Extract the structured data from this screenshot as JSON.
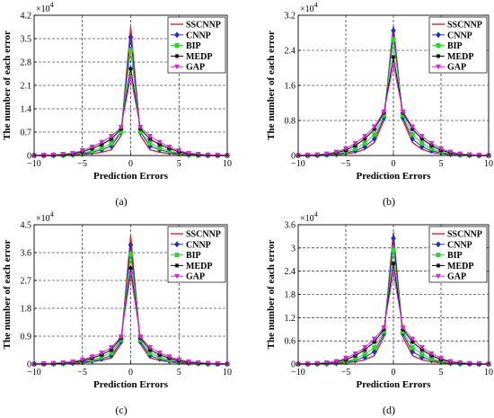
{
  "chart_data": [
    {
      "type": "line",
      "caption": "(a)",
      "multiplier": "×10",
      "multiplier_exp": "4",
      "xlabel": "Prediction Errors",
      "ylabel": "The number of each error",
      "xlim": [
        -10,
        10
      ],
      "ylim": [
        0,
        42000
      ],
      "xticks": [
        -10,
        -5,
        0,
        5,
        10
      ],
      "xtick_labels": [
        "−10",
        "−5",
        "0",
        "5",
        "10"
      ],
      "yticks": [
        0,
        7000,
        14000,
        21000,
        28000,
        35000,
        42000
      ],
      "ytick_labels": [
        "0",
        "0.7",
        "1.4",
        "2.1",
        "2.8",
        "3.5",
        "4.2"
      ],
      "grid": true,
      "legend_position": "top-right",
      "x": [
        -10,
        -9,
        -8,
        -7,
        -6,
        -5,
        -4,
        -3,
        -2,
        -1,
        0,
        1,
        2,
        3,
        4,
        5,
        6,
        7,
        8,
        9,
        10
      ],
      "series": [
        {
          "name": "SSCNNP",
          "color": "#e8202a",
          "marker": "none",
          "values": [
            0,
            0,
            0,
            50,
            100,
            300,
            600,
            1000,
            1700,
            6000,
            38500,
            6000,
            1700,
            1000,
            600,
            300,
            100,
            50,
            0,
            0,
            0
          ]
        },
        {
          "name": "CNNP",
          "color": "#1a2fd0",
          "marker": "diamond",
          "values": [
            0,
            0,
            50,
            100,
            200,
            500,
            1000,
            1700,
            2800,
            7000,
            35500,
            7000,
            2800,
            1700,
            1000,
            500,
            200,
            100,
            50,
            0,
            0
          ]
        },
        {
          "name": "BIP",
          "color": "#22dd22",
          "marker": "square",
          "values": [
            0,
            50,
            100,
            150,
            300,
            700,
            1400,
            2300,
            3600,
            7200,
            31500,
            7200,
            3600,
            2300,
            1400,
            700,
            300,
            150,
            100,
            50,
            0
          ]
        },
        {
          "name": "MEDP",
          "color": "#000000",
          "marker": "star",
          "values": [
            0,
            50,
            100,
            250,
            500,
            1100,
            2100,
            3300,
            4900,
            8000,
            26000,
            8000,
            4900,
            3300,
            2100,
            1100,
            500,
            250,
            100,
            50,
            0
          ]
        },
        {
          "name": "GAP",
          "color": "#e020e0",
          "marker": "triangle-down",
          "values": [
            0,
            100,
            200,
            400,
            700,
            1500,
            2600,
            4000,
            5800,
            8500,
            23500,
            8500,
            5800,
            4000,
            2600,
            1500,
            700,
            400,
            200,
            100,
            0
          ]
        }
      ]
    },
    {
      "type": "line",
      "caption": "(b)",
      "multiplier": "×10",
      "multiplier_exp": "4",
      "xlabel": "Prediction Errors",
      "ylabel": "The number of each error",
      "xlim": [
        -10,
        10
      ],
      "ylim": [
        0,
        32000
      ],
      "xticks": [
        -10,
        -5,
        0,
        5,
        10
      ],
      "xtick_labels": [
        "−10",
        "−5",
        "0",
        "5",
        "10"
      ],
      "yticks": [
        0,
        8000,
        16000,
        24000,
        32000
      ],
      "ytick_labels": [
        "0",
        "0.8",
        "1.6",
        "2.4",
        "3.2"
      ],
      "grid": true,
      "legend_position": "top-right",
      "x": [
        -10,
        -9,
        -8,
        -7,
        -6,
        -5,
        -4,
        -3,
        -2,
        -1,
        0,
        1,
        2,
        3,
        4,
        5,
        6,
        7,
        8,
        9,
        10
      ],
      "series": [
        {
          "name": "SSCNNP",
          "color": "#e8202a",
          "marker": "none",
          "values": [
            0,
            0,
            0,
            100,
            200,
            400,
            700,
            1400,
            3000,
            8000,
            29500,
            8000,
            3000,
            1400,
            700,
            400,
            200,
            100,
            0,
            0,
            0
          ]
        },
        {
          "name": "CNNP",
          "color": "#1a2fd0",
          "marker": "diamond",
          "values": [
            0,
            0,
            50,
            150,
            300,
            600,
            1100,
            2000,
            3800,
            8600,
            28500,
            8600,
            3800,
            2000,
            1100,
            600,
            300,
            150,
            50,
            0,
            0
          ]
        },
        {
          "name": "BIP",
          "color": "#22dd22",
          "marker": "square",
          "values": [
            0,
            50,
            100,
            200,
            400,
            800,
            1600,
            2800,
            4800,
            9200,
            26500,
            9200,
            4800,
            2800,
            1600,
            800,
            400,
            200,
            100,
            50,
            0
          ]
        },
        {
          "name": "MEDP",
          "color": "#000000",
          "marker": "star",
          "values": [
            0,
            50,
            150,
            300,
            600,
            1200,
            2300,
            3800,
            6000,
            9800,
            22500,
            9800,
            6000,
            3800,
            2300,
            1200,
            600,
            300,
            150,
            50,
            0
          ]
        },
        {
          "name": "GAP",
          "color": "#e020e0",
          "marker": "triangle-down",
          "values": [
            0,
            100,
            200,
            400,
            800,
            1600,
            2800,
            4400,
            6600,
            10000,
            20500,
            10000,
            6600,
            4400,
            2800,
            1600,
            800,
            400,
            200,
            100,
            0
          ]
        }
      ]
    },
    {
      "type": "line",
      "caption": "(c)",
      "multiplier": "×10",
      "multiplier_exp": "4",
      "xlabel": "Prediction Errors",
      "ylabel": "The number of each error",
      "xlim": [
        -10,
        10
      ],
      "ylim": [
        0,
        45000
      ],
      "xticks": [
        -10,
        -5,
        0,
        5,
        10
      ],
      "xtick_labels": [
        "−10",
        "−5",
        "0",
        "5",
        "10"
      ],
      "yticks": [
        0,
        9000,
        18000,
        27000,
        36000,
        45000
      ],
      "ytick_labels": [
        "0",
        "0.9",
        "1.8",
        "2.7",
        "3.6",
        "4.5"
      ],
      "grid": true,
      "legend_position": "top-right",
      "x": [
        -10,
        -9,
        -8,
        -7,
        -6,
        -5,
        -4,
        -3,
        -2,
        -1,
        0,
        1,
        2,
        3,
        4,
        5,
        6,
        7,
        8,
        9,
        10
      ],
      "series": [
        {
          "name": "SSCNNP",
          "color": "#e8202a",
          "marker": "none",
          "values": [
            0,
            0,
            50,
            100,
            200,
            400,
            700,
            1200,
            2000,
            6500,
            41500,
            6500,
            2000,
            1200,
            700,
            400,
            200,
            100,
            50,
            0,
            0
          ]
        },
        {
          "name": "CNNP",
          "color": "#1a2fd0",
          "marker": "diamond",
          "values": [
            0,
            50,
            100,
            200,
            300,
            600,
            1000,
            1700,
            2700,
            7200,
            38500,
            7200,
            2700,
            1700,
            1000,
            600,
            300,
            200,
            100,
            50,
            0
          ]
        },
        {
          "name": "BIP",
          "color": "#22dd22",
          "marker": "square",
          "values": [
            0,
            50,
            150,
            250,
            400,
            800,
            1400,
            2300,
            3600,
            7800,
            35500,
            7800,
            3600,
            2300,
            1400,
            800,
            400,
            250,
            150,
            50,
            0
          ]
        },
        {
          "name": "MEDP",
          "color": "#000000",
          "marker": "star",
          "values": [
            0,
            100,
            200,
            350,
            600,
            1100,
            1900,
            3000,
            4600,
            8400,
            31000,
            8400,
            4600,
            3000,
            1900,
            1100,
            600,
            350,
            200,
            100,
            0
          ]
        },
        {
          "name": "GAP",
          "color": "#e020e0",
          "marker": "triangle-down",
          "values": [
            0,
            150,
            300,
            500,
            800,
            1400,
            2400,
            3600,
            5400,
            8800,
            29000,
            8800,
            5400,
            3600,
            2400,
            1400,
            800,
            500,
            300,
            150,
            0
          ]
        }
      ]
    },
    {
      "type": "line",
      "caption": "(d)",
      "multiplier": "×10",
      "multiplier_exp": "4",
      "xlabel": "Prediction Errors",
      "ylabel": "The number of each error",
      "xlim": [
        -10,
        10
      ],
      "ylim": [
        0,
        36000
      ],
      "xticks": [
        -10,
        -5,
        0,
        5,
        10
      ],
      "xtick_labels": [
        "−10",
        "−5",
        "0",
        "5",
        "10"
      ],
      "yticks": [
        0,
        6000,
        12000,
        18000,
        24000,
        30000,
        36000
      ],
      "ytick_labels": [
        "0",
        "0.6",
        "1.2",
        "1.8",
        "2.4",
        "3",
        "3.6"
      ],
      "grid": true,
      "legend_position": "top-right",
      "x": [
        -10,
        -9,
        -8,
        -7,
        -6,
        -5,
        -4,
        -3,
        -2,
        -1,
        0,
        1,
        2,
        3,
        4,
        5,
        6,
        7,
        8,
        9,
        10
      ],
      "series": [
        {
          "name": "SSCNNP",
          "color": "#e8202a",
          "marker": "none",
          "values": [
            0,
            0,
            0,
            50,
            100,
            300,
            600,
            1100,
            2200,
            7000,
            34000,
            7000,
            2200,
            1100,
            600,
            300,
            100,
            50,
            0,
            0,
            0
          ]
        },
        {
          "name": "CNNP",
          "color": "#1a2fd0",
          "marker": "diamond",
          "values": [
            0,
            0,
            50,
            100,
            200,
            500,
            1000,
            1800,
            3200,
            7800,
            32500,
            7800,
            3200,
            1800,
            1000,
            500,
            200,
            100,
            50,
            0,
            0
          ]
        },
        {
          "name": "BIP",
          "color": "#22dd22",
          "marker": "square",
          "values": [
            0,
            50,
            100,
            200,
            350,
            700,
            1400,
            2600,
            4300,
            8400,
            29500,
            8400,
            4300,
            2600,
            1400,
            700,
            350,
            200,
            100,
            50,
            0
          ]
        },
        {
          "name": "MEDP",
          "color": "#000000",
          "marker": "star",
          "values": [
            0,
            50,
            150,
            300,
            600,
            1100,
            2200,
            3700,
            5700,
            9000,
            26000,
            9000,
            5700,
            3700,
            2200,
            1100,
            600,
            300,
            150,
            50,
            0
          ]
        },
        {
          "name": "GAP",
          "color": "#e020e0",
          "marker": "triangle-down",
          "values": [
            0,
            100,
            200,
            400,
            700,
            1500,
            2700,
            4300,
            6500,
            9400,
            23500,
            9400,
            6500,
            4300,
            2700,
            1500,
            700,
            400,
            200,
            100,
            0
          ]
        }
      ]
    }
  ]
}
